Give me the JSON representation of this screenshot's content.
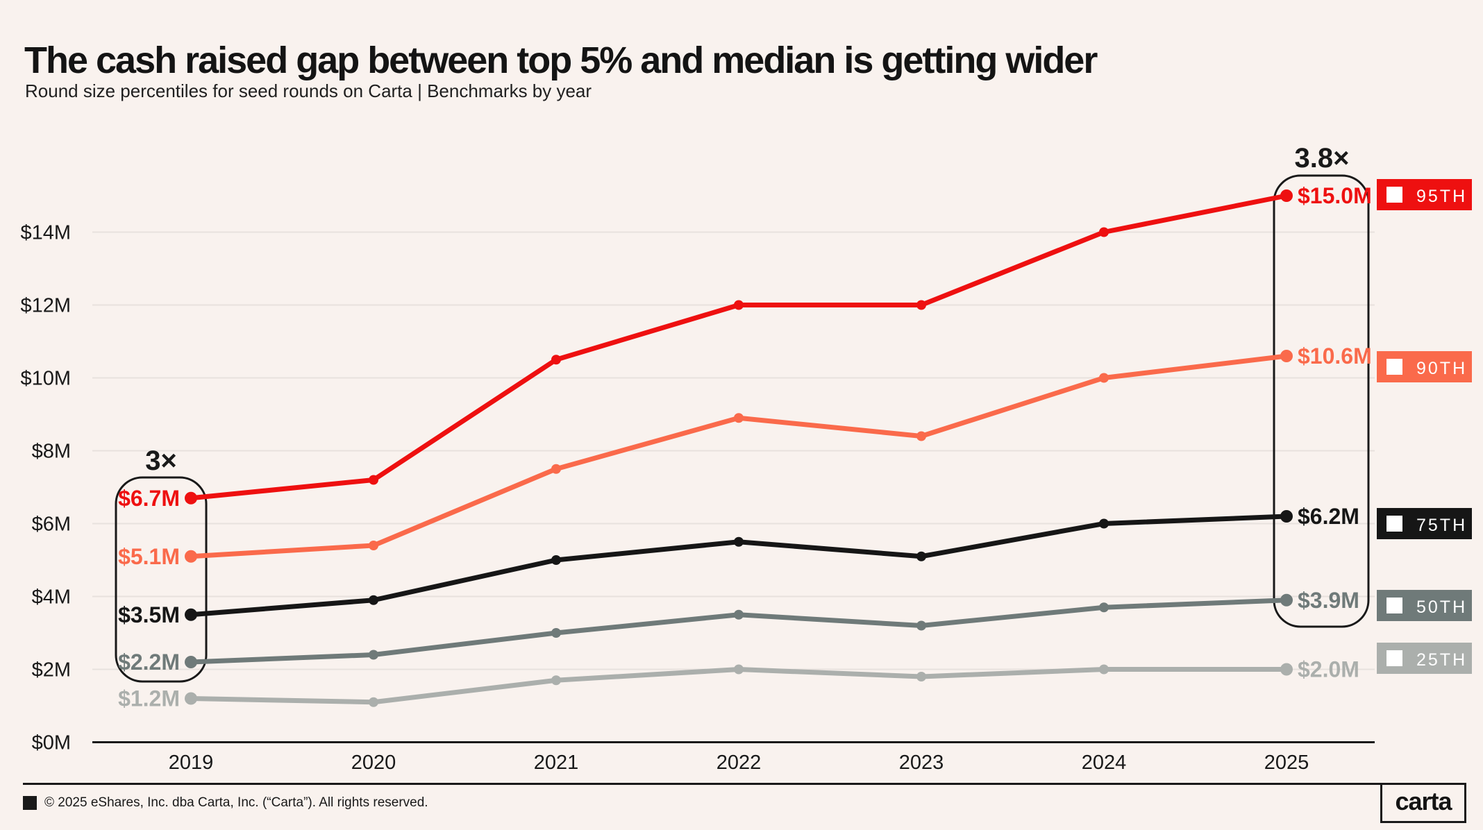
{
  "chart_data": {
    "type": "line",
    "title": "The cash raised gap between top 5% and median is getting wider",
    "subtitle": "Round size percentiles for seed rounds on Carta | Benchmarks by year",
    "unit": "USD millions",
    "x_categories": [
      "2019",
      "2020",
      "2021",
      "2022",
      "2023",
      "2024",
      "2025"
    ],
    "y_tick_labels": [
      "$0M",
      "$2M",
      "$4M",
      "$6M",
      "$8M",
      "$10M",
      "$12M",
      "$14M"
    ],
    "ylim": [
      0,
      15.5
    ],
    "grid": "horizontal",
    "legend_position": "right",
    "series": [
      {
        "name": "95TH",
        "color": "#EE1010",
        "values": [
          6.7,
          7.2,
          10.5,
          12.0,
          12.0,
          14.0,
          15.0
        ],
        "start_label": "$6.7M",
        "end_label": "$15.0M"
      },
      {
        "name": "90TH",
        "color": "#FA6A4B",
        "values": [
          5.1,
          5.4,
          7.5,
          8.9,
          8.4,
          10.0,
          10.6
        ],
        "start_label": "$5.1M",
        "end_label": "$10.6M"
      },
      {
        "name": "75TH",
        "color": "#161616",
        "values": [
          3.5,
          3.9,
          5.0,
          5.5,
          5.1,
          6.0,
          6.2
        ],
        "start_label": "$3.5M",
        "end_label": "$6.2M"
      },
      {
        "name": "50TH",
        "color": "#6F7A79",
        "values": [
          2.2,
          2.4,
          3.0,
          3.5,
          3.2,
          3.7,
          3.9
        ],
        "start_label": "$2.2M",
        "end_label": "$3.9M"
      },
      {
        "name": "25TH",
        "color": "#ABAFAC",
        "values": [
          1.2,
          1.1,
          1.7,
          2.0,
          1.8,
          2.0,
          2.0
        ],
        "start_label": "$1.2M",
        "end_label": "$2.0M"
      }
    ],
    "annotations": [
      {
        "text": "3×",
        "year": "2019"
      },
      {
        "text": "3.8×",
        "year": "2025"
      }
    ]
  },
  "theme": {
    "background": "#F9F2EE",
    "grid": "#E8E1DD",
    "text": "#191919"
  },
  "footer": {
    "copyright": "© 2025 eShares, Inc. dba Carta, Inc. (“Carta”). All rights reserved.",
    "logo_text": "carta"
  }
}
